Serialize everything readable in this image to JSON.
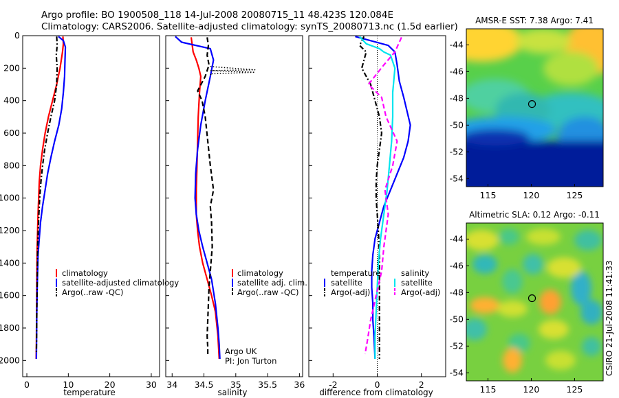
{
  "header": {
    "line1": "Argo profile: BO 1900508_118 14-Jul-2008 20080715_11 48.423S 120.084E",
    "line2": "Climatology: CARS2006. Satellite-adjusted climatology: synTS_20080713.nc (1.5d earlier)"
  },
  "footer": {
    "credit": "CSIRO 21-Jul-2008 11:41:33",
    "argo_label": "Argo UK",
    "pi_label": "PI: Jon Turton"
  },
  "chart_data": [
    {
      "type": "line",
      "xlabel": "temperature",
      "xlim": [
        -1,
        32
      ],
      "xticks": [
        0,
        10,
        20,
        30
      ],
      "ylim": [
        0,
        2100
      ],
      "yticks": [
        0,
        200,
        400,
        600,
        800,
        1000,
        1200,
        1400,
        1600,
        1800,
        2000
      ],
      "y_reversed": true,
      "legend": [
        "climatology",
        "satellite-adjusted climatology",
        "Argo(..raw -QC)"
      ],
      "series": [
        {
          "name": "climatology",
          "color": "#ff0000",
          "style": "solid",
          "x": [
            8.7,
            8.8,
            8.6,
            8.0,
            7.2,
            6.2,
            5.2,
            4.4,
            3.8,
            3.3,
            3.0,
            2.85,
            2.7,
            2.6,
            2.5,
            2.45,
            2.4,
            2.35,
            2.3,
            2.25
          ],
          "y": [
            5,
            50,
            100,
            200,
            300,
            400,
            500,
            600,
            700,
            800,
            900,
            1000,
            1100,
            1200,
            1300,
            1400,
            1500,
            1700,
            1900,
            1990
          ]
        },
        {
          "name": "satellite-adjusted climatology",
          "color": "#0000ff",
          "style": "solid",
          "x": [
            7.6,
            8.8,
            9.3,
            9.2,
            9.1,
            8.8,
            8.4,
            7.7,
            6.7,
            5.8,
            5.0,
            4.4,
            3.8,
            3.3,
            3.0,
            2.7,
            2.6,
            2.5,
            2.4,
            2.35,
            2.3
          ],
          "y": [
            5,
            30,
            70,
            150,
            250,
            350,
            450,
            550,
            650,
            750,
            850,
            950,
            1050,
            1150,
            1250,
            1350,
            1450,
            1550,
            1700,
            1850,
            1990
          ]
        },
        {
          "name": "Argo(..raw -QC)",
          "color": "#000000",
          "style": "dashdot",
          "x": [
            7.2,
            7.3,
            7.1,
            7.3,
            7.2,
            6.7,
            5.8,
            5.0,
            4.3,
            3.8,
            3.4,
            3.1,
            2.9,
            2.75,
            2.6,
            2.5,
            2.4,
            2.35,
            2.3
          ],
          "y": [
            5,
            60,
            120,
            200,
            300,
            400,
            500,
            600,
            700,
            800,
            900,
            1000,
            1100,
            1200,
            1300,
            1500,
            1700,
            1850,
            1960
          ]
        }
      ]
    },
    {
      "type": "line",
      "xlabel": "salinity",
      "xlim": [
        33.9,
        36.05
      ],
      "xticks": [
        34,
        34.5,
        35,
        35.5,
        36
      ],
      "xticklabels": [
        "34",
        "34.5",
        "35",
        "35.5",
        "36"
      ],
      "ylim": [
        0,
        2100
      ],
      "y_reversed": true,
      "legend": [
        "climatology",
        "satellite adj. clim.",
        "Argo(..raw -QC)"
      ],
      "series": [
        {
          "name": "climatology",
          "color": "#ff0000",
          "style": "solid",
          "x": [
            34.3,
            34.33,
            34.38,
            34.42,
            34.45,
            34.43,
            34.41,
            34.4,
            34.39,
            34.38,
            34.38,
            34.4,
            34.43,
            34.48,
            34.55,
            34.62,
            34.68,
            34.72,
            34.74
          ],
          "y": [
            10,
            100,
            150,
            200,
            250,
            350,
            500,
            650,
            800,
            950,
            1100,
            1200,
            1300,
            1400,
            1500,
            1600,
            1700,
            1850,
            1990
          ]
        },
        {
          "name": "satellite adj. clim.",
          "color": "#0000ff",
          "style": "solid",
          "x": [
            34.05,
            34.15,
            34.6,
            34.65,
            34.6,
            34.52,
            34.45,
            34.4,
            34.37,
            34.36,
            34.38,
            34.42,
            34.48,
            34.55,
            34.62,
            34.68,
            34.72,
            34.74,
            34.75
          ],
          "y": [
            5,
            40,
            80,
            150,
            250,
            400,
            550,
            700,
            850,
            1000,
            1100,
            1200,
            1300,
            1400,
            1500,
            1650,
            1800,
            1900,
            1990
          ]
        },
        {
          "name": "Argo(..raw -QC)",
          "color": "#000000",
          "style": "dashed",
          "x": [
            34.55,
            34.57,
            34.55,
            34.58,
            34.52,
            34.4,
            34.47,
            34.52,
            34.56,
            34.6,
            34.65,
            34.6,
            34.62,
            34.63,
            34.6,
            34.58,
            34.57,
            34.56,
            34.55,
            34.56,
            34.56
          ],
          "y": [
            10,
            60,
            120,
            180,
            250,
            340,
            400,
            500,
            650,
            800,
            950,
            1050,
            1150,
            1300,
            1450,
            1550,
            1650,
            1750,
            1850,
            1920,
            1970
          ]
        },
        {
          "name": "",
          "color": "#000000",
          "style": "dotted",
          "x": [
            34.6,
            35.3,
            34.6,
            35.3,
            34.6,
            34.62
          ],
          "y": [
            190,
            210,
            215,
            225,
            235,
            245
          ]
        }
      ]
    },
    {
      "type": "line",
      "xlabel": "difference from climatology",
      "xlim": [
        -3.1,
        3.1
      ],
      "xticks": [
        -2,
        0,
        2
      ],
      "ylim": [
        0,
        2100
      ],
      "y_reversed": true,
      "legend": [
        "temperature",
        "satellite",
        "Argo(-adj)",
        "salinity",
        "satellite",
        "Argo(-adj)"
      ],
      "series": [
        {
          "name": "temperature satellite",
          "color": "#0000ff",
          "style": "solid",
          "x": [
            -1.0,
            0.5,
            0.8,
            0.9,
            1.0,
            1.2,
            1.5,
            1.4,
            1.2,
            0.9,
            0.6,
            0.3,
            0.1,
            -0.1,
            -0.2,
            -0.25,
            -0.25,
            -0.2,
            -0.2,
            -0.15,
            -0.1
          ],
          "y": [
            5,
            60,
            100,
            180,
            280,
            380,
            550,
            650,
            750,
            850,
            950,
            1050,
            1150,
            1250,
            1350,
            1450,
            1550,
            1650,
            1750,
            1850,
            1990
          ]
        },
        {
          "name": "temperature Argo(-adj)",
          "color": "#000000",
          "style": "dashdot",
          "x": [
            -0.6,
            -0.8,
            -0.5,
            -0.7,
            -0.3,
            -0.1,
            0.1,
            0.2,
            0.1,
            0.0,
            -0.05,
            -0.05,
            0.0,
            0.05,
            0.1,
            0.1,
            0.1,
            0.1,
            0.1,
            0.1
          ],
          "y": [
            5,
            60,
            100,
            200,
            300,
            400,
            500,
            600,
            700,
            800,
            900,
            1000,
            1100,
            1200,
            1350,
            1500,
            1650,
            1800,
            1900,
            1990
          ]
        },
        {
          "name": "salinity satellite",
          "color": "#00e5ee",
          "style": "solid",
          "x": [
            -0.8,
            -0.5,
            0.1,
            0.3,
            0.6,
            0.8,
            0.7,
            0.7,
            0.65,
            0.55,
            0.45,
            0.3,
            0.15,
            0.05,
            0.0,
            -0.05,
            -0.1,
            -0.1
          ],
          "y": [
            5,
            50,
            80,
            100,
            120,
            200,
            350,
            500,
            650,
            800,
            950,
            1100,
            1250,
            1400,
            1550,
            1700,
            1850,
            1990
          ]
        },
        {
          "name": "salinity Argo(-adj)",
          "color": "#ff00ff",
          "style": "dashed",
          "x": [
            1.1,
            0.8,
            0.3,
            -0.4,
            0.2,
            0.4,
            0.9,
            0.7,
            0.35,
            0.5,
            0.3,
            0.2,
            -0.05,
            -0.3,
            -0.45,
            -0.55
          ],
          "y": [
            10,
            100,
            180,
            300,
            380,
            500,
            650,
            800,
            950,
            1100,
            1300,
            1450,
            1600,
            1750,
            1880,
            1960
          ]
        }
      ]
    },
    {
      "type": "heatmap",
      "title": "AMSR-E SST: 7.38 Argo: 7.41",
      "xticks": [
        115,
        120,
        125
      ],
      "yticks": [
        -44,
        -46,
        -48,
        -50,
        -52,
        -54
      ],
      "xlim": [
        112.5,
        128.3
      ],
      "ylim": [
        -54.6,
        -42.8
      ],
      "marker": {
        "lon": 120.084,
        "lat": -48.423
      }
    },
    {
      "type": "heatmap",
      "title": "Altimetric SLA: 0.12 Argo: -0.11",
      "xticks": [
        115,
        120,
        125
      ],
      "yticks": [
        -44,
        -46,
        -48,
        -50,
        -52,
        -54
      ],
      "xlim": [
        112.5,
        128.3
      ],
      "ylim": [
        -54.6,
        -42.8
      ],
      "marker": {
        "lon": 120.084,
        "lat": -48.423
      }
    }
  ]
}
